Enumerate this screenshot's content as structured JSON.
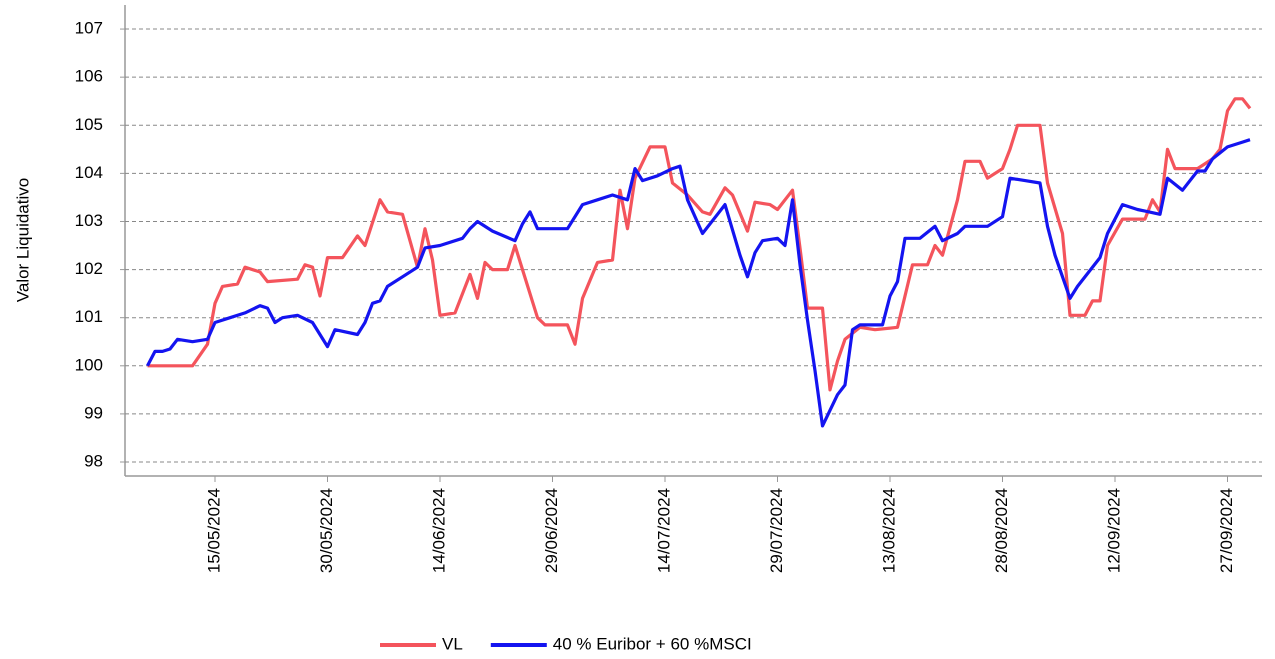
{
  "chart_data": {
    "type": "line",
    "y_label": "Valor Liquidativo",
    "xlim": [
      "03/05/2024",
      "01/10/2024"
    ],
    "xticks": [
      "15/05/2024",
      "30/05/2024",
      "14/06/2024",
      "29/06/2024",
      "14/07/2024",
      "29/07/2024",
      "13/08/2024",
      "28/08/2024",
      "12/09/2024",
      "27/09/2024"
    ],
    "ylim": [
      97.73,
      107.5
    ],
    "yticks": [
      98,
      99,
      100,
      101,
      102,
      103,
      104,
      105,
      106,
      107
    ],
    "grid": true,
    "legend": "bottom",
    "series": [
      {
        "name": "VL",
        "color": "#f4545c",
        "x": [
          "06/05/2024",
          "07/05/2024",
          "12/05/2024",
          "14/05/2024",
          "15/05/2024",
          "16/05/2024",
          "18/05/2024",
          "19/05/2024",
          "21/05/2024",
          "22/05/2024",
          "26/05/2024",
          "27/05/2024",
          "28/05/2024",
          "29/05/2024",
          "30/05/2024",
          "01/06/2024",
          "03/06/2024",
          "04/06/2024",
          "06/06/2024",
          "07/06/2024",
          "09/06/2024",
          "11/06/2024",
          "12/06/2024",
          "13/06/2024",
          "14/06/2024",
          "16/06/2024",
          "18/06/2024",
          "19/06/2024",
          "20/06/2024",
          "21/06/2024",
          "23/06/2024",
          "24/06/2024",
          "25/06/2024",
          "27/06/2024",
          "28/06/2024",
          "01/07/2024",
          "02/07/2024",
          "03/07/2024",
          "05/07/2024",
          "07/07/2024",
          "08/07/2024",
          "09/07/2024",
          "10/07/2024",
          "12/07/2024",
          "14/07/2024",
          "15/07/2024",
          "17/07/2024",
          "19/07/2024",
          "20/07/2024",
          "22/07/2024",
          "23/07/2024",
          "25/07/2024",
          "26/07/2024",
          "28/07/2024",
          "29/07/2024",
          "31/07/2024",
          "01/08/2024",
          "02/08/2024",
          "04/08/2024",
          "05/08/2024",
          "06/08/2024",
          "07/08/2024",
          "09/08/2024",
          "11/08/2024",
          "14/08/2024",
          "16/08/2024",
          "18/08/2024",
          "19/08/2024",
          "20/08/2024",
          "22/08/2024",
          "23/08/2024",
          "25/08/2024",
          "26/08/2024",
          "28/08/2024",
          "29/08/2024",
          "30/08/2024",
          "02/09/2024",
          "03/09/2024",
          "05/09/2024",
          "06/09/2024",
          "08/09/2024",
          "09/09/2024",
          "10/09/2024",
          "11/09/2024",
          "13/09/2024",
          "16/09/2024",
          "17/09/2024",
          "18/09/2024",
          "19/09/2024",
          "20/09/2024",
          "23/09/2024",
          "25/09/2024",
          "26/09/2024",
          "27/09/2024",
          "28/09/2024",
          "29/09/2024",
          "30/09/2024"
        ],
        "values": [
          100.0,
          100.0,
          100.0,
          100.45,
          101.3,
          101.65,
          101.7,
          102.05,
          101.95,
          101.75,
          101.8,
          102.1,
          102.05,
          101.45,
          102.25,
          102.25,
          102.7,
          102.5,
          103.45,
          103.2,
          103.15,
          102.05,
          102.85,
          102.2,
          101.05,
          101.1,
          101.9,
          101.4,
          102.15,
          102.0,
          102.0,
          102.5,
          102.0,
          101.0,
          100.85,
          100.85,
          100.45,
          101.4,
          102.15,
          102.2,
          103.65,
          102.85,
          103.9,
          104.55,
          104.55,
          103.8,
          103.55,
          103.2,
          103.15,
          103.7,
          103.55,
          102.8,
          103.4,
          103.35,
          103.25,
          103.65,
          102.45,
          101.2,
          101.2,
          99.5,
          100.1,
          100.55,
          100.8,
          100.75,
          100.8,
          102.1,
          102.1,
          102.5,
          102.3,
          103.45,
          104.25,
          104.25,
          103.9,
          104.1,
          104.5,
          105.0,
          105.0,
          103.8,
          102.75,
          101.05,
          101.05,
          101.35,
          101.35,
          102.5,
          103.05,
          103.05,
          103.45,
          103.2,
          104.5,
          104.1,
          104.1,
          104.3,
          104.5,
          105.3,
          105.55,
          105.55,
          105.35
        ]
      },
      {
        "name": "40 % Euribor + 60 %MSCI",
        "color": "#1414f0",
        "x": [
          "06/05/2024",
          "07/05/2024",
          "08/05/2024",
          "09/05/2024",
          "10/05/2024",
          "12/05/2024",
          "14/05/2024",
          "15/05/2024",
          "17/05/2024",
          "19/05/2024",
          "21/05/2024",
          "22/05/2024",
          "23/05/2024",
          "24/05/2024",
          "26/05/2024",
          "28/05/2024",
          "30/05/2024",
          "31/05/2024",
          "03/06/2024",
          "04/06/2024",
          "05/06/2024",
          "06/06/2024",
          "07/06/2024",
          "09/06/2024",
          "11/06/2024",
          "12/06/2024",
          "14/06/2024",
          "17/06/2024",
          "18/06/2024",
          "19/06/2024",
          "21/06/2024",
          "24/06/2024",
          "25/06/2024",
          "26/06/2024",
          "27/06/2024",
          "01/07/2024",
          "03/07/2024",
          "05/07/2024",
          "07/07/2024",
          "09/07/2024",
          "10/07/2024",
          "11/07/2024",
          "13/07/2024",
          "15/07/2024",
          "16/07/2024",
          "17/07/2024",
          "19/07/2024",
          "21/07/2024",
          "22/07/2024",
          "24/07/2024",
          "25/07/2024",
          "26/07/2024",
          "27/07/2024",
          "29/07/2024",
          "30/07/2024",
          "31/07/2024",
          "01/08/2024",
          "02/08/2024",
          "03/08/2024",
          "04/08/2024",
          "06/08/2024",
          "07/08/2024",
          "08/08/2024",
          "09/08/2024",
          "12/08/2024",
          "13/08/2024",
          "14/08/2024",
          "15/08/2024",
          "17/08/2024",
          "19/08/2024",
          "20/08/2024",
          "22/08/2024",
          "23/08/2024",
          "26/08/2024",
          "28/08/2024",
          "29/08/2024",
          "31/08/2024",
          "02/09/2024",
          "03/09/2024",
          "04/09/2024",
          "06/09/2024",
          "07/09/2024",
          "10/09/2024",
          "11/09/2024",
          "13/09/2024",
          "15/09/2024",
          "18/09/2024",
          "19/09/2024",
          "21/09/2024",
          "23/09/2024",
          "24/09/2024",
          "25/09/2024",
          "27/09/2024",
          "29/09/2024",
          "30/09/2024"
        ],
        "values": [
          100.0,
          100.3,
          100.3,
          100.35,
          100.55,
          100.5,
          100.55,
          100.9,
          101.0,
          101.1,
          101.25,
          101.2,
          100.9,
          101.0,
          101.05,
          100.9,
          100.4,
          100.75,
          100.65,
          100.9,
          101.3,
          101.35,
          101.65,
          101.85,
          102.05,
          102.45,
          102.5,
          102.65,
          102.85,
          103.0,
          102.8,
          102.6,
          102.95,
          103.2,
          102.85,
          102.85,
          103.35,
          103.45,
          103.55,
          103.45,
          104.1,
          103.85,
          103.95,
          104.1,
          104.15,
          103.45,
          102.75,
          103.15,
          103.35,
          102.3,
          101.85,
          102.35,
          102.6,
          102.65,
          102.5,
          103.45,
          102.1,
          100.95,
          99.9,
          98.75,
          99.4,
          99.6,
          100.75,
          100.85,
          100.85,
          101.45,
          101.75,
          102.65,
          102.65,
          102.9,
          102.6,
          102.75,
          102.9,
          102.9,
          103.1,
          103.9,
          103.85,
          103.8,
          102.9,
          102.3,
          101.4,
          101.65,
          102.25,
          102.75,
          103.35,
          103.25,
          103.15,
          103.9,
          103.65,
          104.05,
          104.05,
          104.3,
          104.55,
          104.65,
          104.7
        ]
      }
    ]
  }
}
